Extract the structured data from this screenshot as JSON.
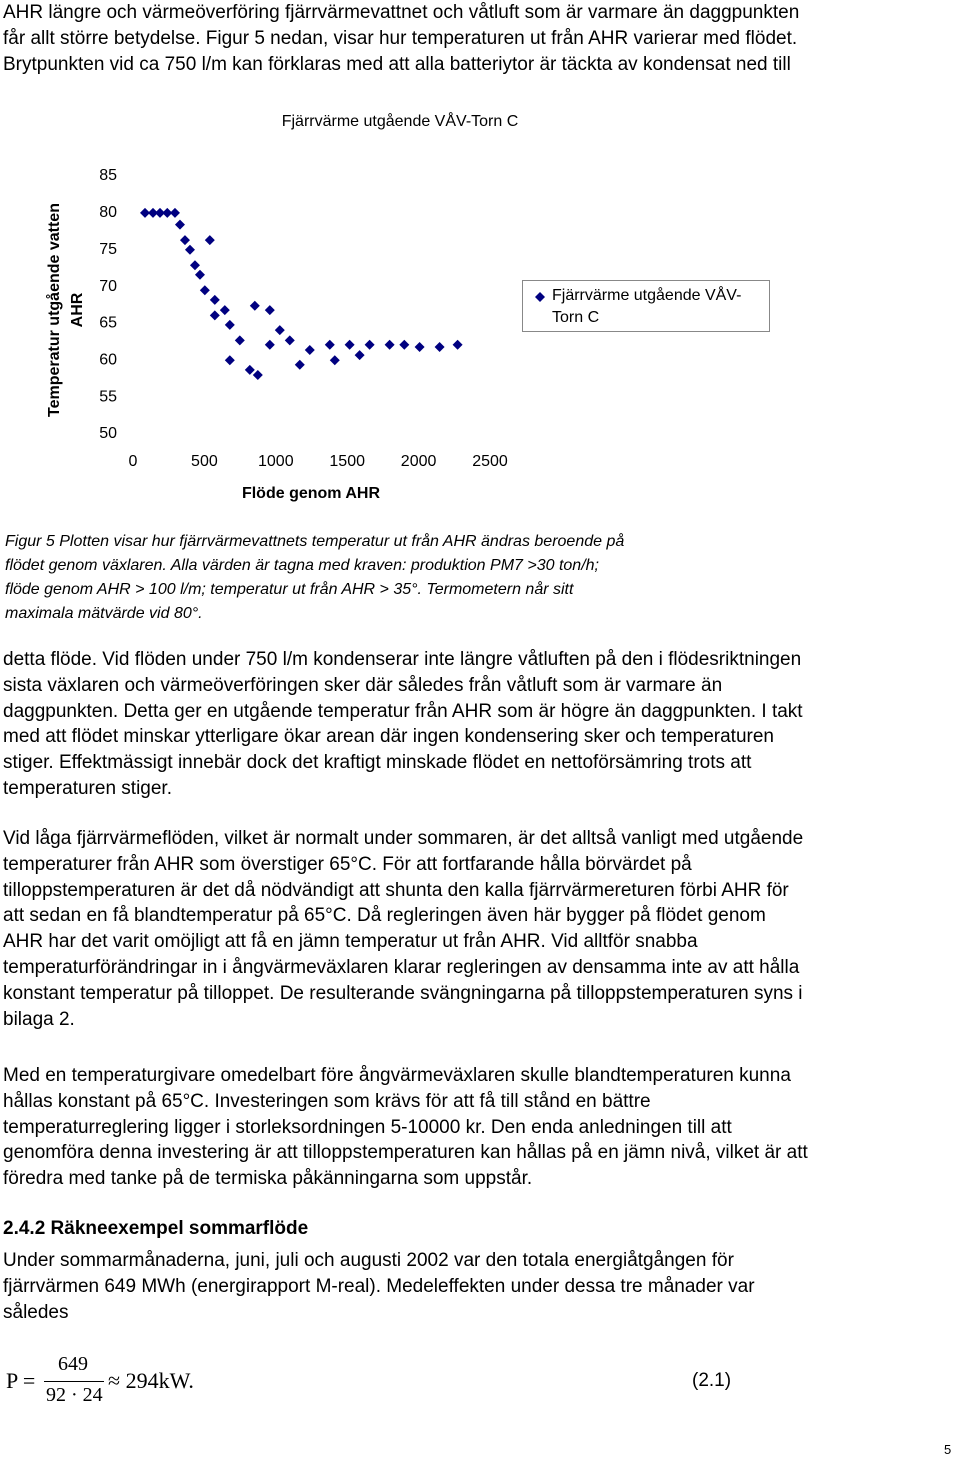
{
  "intro": [
    "AHR längre och värmeöverföring fjärrvärmevattnet och våtluft som är varmare än daggpunkten",
    "får allt större betydelse. Figur 5 nedan, visar hur temperaturen ut från AHR varierar med flödet.",
    "Brytpunkten vid ca 750 l/m kan förklaras med att alla batteriytor är täckta av kondensat ned till"
  ],
  "chart_data": {
    "type": "scatter",
    "title": "Fjärrvärme utgående VÅV-Torn C",
    "xlabel": "Flöde genom AHR",
    "ylabel": [
      "Temperatur utgående vatten",
      "AHR"
    ],
    "xlim": [
      0,
      2500
    ],
    "ylim": [
      50,
      85
    ],
    "xticks": [
      0,
      500,
      1000,
      1500,
      2000,
      2500
    ],
    "yticks": [
      50,
      55,
      60,
      65,
      70,
      75,
      80,
      85
    ],
    "grid": false,
    "legend": "right",
    "series": [
      {
        "name": "Fjärrvärme utgående VÅV-Torn C",
        "color": "#000080",
        "x": [
          84,
          140,
          189,
          240,
          294,
          329,
          364,
          399,
          434,
          469,
          503,
          538,
          573,
          573,
          643,
          678,
          678,
          748,
          818,
          853,
          874,
          958,
          958,
          1028,
          1098,
          1168,
          1238,
          1378,
          1413,
          1517,
          1587,
          1657,
          1797,
          1900,
          2007,
          2147,
          2273
        ],
        "y": [
          80,
          80,
          80,
          80,
          80,
          78.4,
          76.3,
          75,
          72.9,
          71.6,
          69.5,
          76.3,
          68.2,
          66.1,
          66.8,
          64.8,
          60,
          62.7,
          58.7,
          67.4,
          58,
          62.1,
          66.8,
          64.1,
          62.7,
          59.4,
          61.4,
          62.1,
          60,
          62.1,
          60.7,
          62.1,
          62.1,
          62.1,
          61.8,
          61.8,
          62.1
        ]
      }
    ]
  },
  "caption": [
    "Figur 5 Plotten visar hur fjärrvärmevattnets temperatur ut från AHR ändras beroende på",
    "flödet genom växlaren. Alla värden är tagna med kraven: produktion PM7 >30 ton/h;",
    "flöde genom AHR > 100 l/m; temperatur ut från AHR > 35°. Termometern når sitt",
    "maximala mätvärde vid 80°."
  ],
  "paragraphs": [
    [
      "detta flöde. Vid flöden under 750 l/m kondenserar inte längre våtluften på den i flödesriktningen",
      "sista växlaren och värmeöverföringen sker där således från våtluft som är varmare än",
      "daggpunkten. Detta ger en utgående temperatur från AHR som är högre än daggpunkten. I takt",
      "med att flödet minskar ytterligare ökar arean där ingen kondensering sker och temperaturen",
      "stiger. Effektmässigt innebär dock det kraftigt minskade flödet en nettoförsämring trots att",
      "temperaturen stiger."
    ],
    [
      "Vid låga fjärrvärmeflöden, vilket är normalt under sommaren, är det alltså vanligt med utgående",
      "temperaturer från AHR som överstiger 65°C. För att fortfarande hålla börvärdet på",
      "tilloppstemperaturen är det då nödvändigt att shunta den kalla fjärrvärmereturen förbi AHR för",
      "att sedan en få blandtemperatur på 65°C. Då regleringen även här bygger på flödet genom",
      "AHR har det varit omöjligt att få en jämn temperatur ut från AHR. Vid alltför snabba",
      "temperaturförändringar in i ångvärmeväxlaren klarar regleringen av densamma inte av att hålla",
      "konstant temperatur på tilloppet. De resulterande svängningarna på tilloppstemperaturen syns i",
      "bilaga 2."
    ],
    [
      "Med en temperaturgivare omedelbart före ångvärmeväxlaren skulle blandtemperaturen kunna",
      "hållas konstant på 65°C. Investeringen som krävs för att få till stånd en bättre",
      "temperaturreglering ligger i storleksordningen 5-10000 kr. Den enda anledningen till att",
      "genomföra denna investering är att tilloppstemperaturen kan hållas på en jämn nivå, vilket är att",
      "föredra med tanke på de termiska påkänningarna som uppstår."
    ]
  ],
  "heading": "2.4.2 Räkneexempel sommarflöde",
  "paragraph4": [
    "Under sommarmånaderna, juni, juli och augusti 2002 var den totala energiåtgången för",
    "fjärrvärmen 649 MWh (energirapport M-real). Medeleffekten under dessa tre månader var",
    "således"
  ],
  "formula": {
    "lhs": "P =",
    "numerator": "649",
    "denominator": "92 · 24",
    "rhs": "≈ 294kW.",
    "number": "(2.1)"
  },
  "page_number": "5"
}
